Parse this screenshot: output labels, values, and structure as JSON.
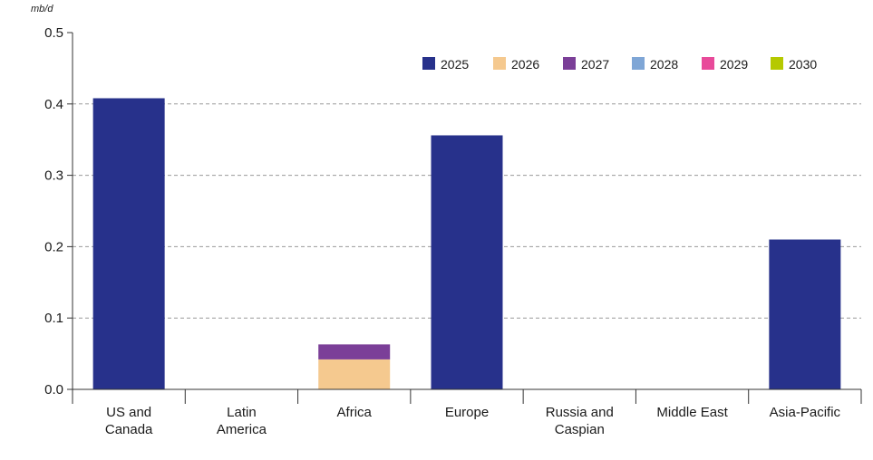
{
  "chart_data": {
    "type": "bar",
    "stacked": true,
    "unit": "mb/d",
    "categories": [
      [
        "US and",
        "Canada"
      ],
      [
        "Latin",
        "America"
      ],
      [
        "Africa"
      ],
      [
        "Europe"
      ],
      [
        "Russia and",
        "Caspian"
      ],
      [
        "Middle East"
      ],
      [
        "Asia-Pacific"
      ]
    ],
    "ylim": [
      0,
      0.5
    ],
    "yticks": [
      "0.0",
      "0.1",
      "0.2",
      "0.3",
      "0.4",
      "0.5"
    ],
    "grid": true,
    "legend_position": "top-right",
    "series": [
      {
        "name": "2025",
        "color": "#27318b",
        "values": [
          0.408,
          0,
          0,
          0.356,
          0,
          0,
          0.21
        ]
      },
      {
        "name": "2026",
        "color": "#f5c98f",
        "values": [
          0,
          0,
          0.042,
          0,
          0,
          0,
          0
        ]
      },
      {
        "name": "2027",
        "color": "#7b3f98",
        "values": [
          0,
          0,
          0.021,
          0,
          0,
          0,
          0
        ]
      },
      {
        "name": "2028",
        "color": "#7fa6d6",
        "values": [
          0,
          0,
          0,
          0,
          0,
          0,
          0
        ]
      },
      {
        "name": "2029",
        "color": "#e84a9a",
        "values": [
          0,
          0,
          0,
          0,
          0,
          0,
          0
        ]
      },
      {
        "name": "2030",
        "color": "#b5c900",
        "values": [
          0,
          0,
          0,
          0,
          0,
          0,
          0
        ]
      }
    ]
  }
}
